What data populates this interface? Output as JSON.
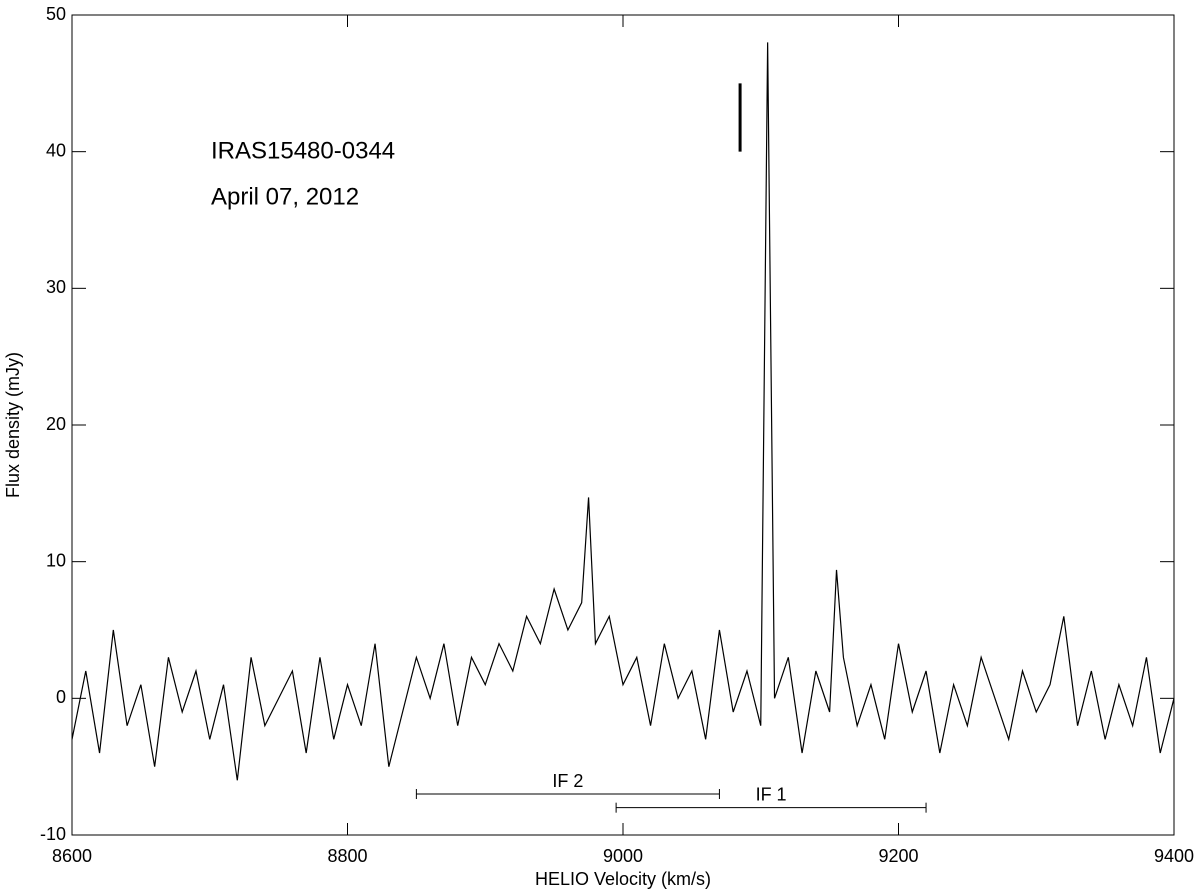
{
  "chart_data": {
    "type": "line",
    "xlabel": "HELIO Velocity (km/s)",
    "ylabel": "Flux density (mJy)",
    "annotations": [
      "IRAS15480-0344",
      "April 07, 2012"
    ],
    "color": "#000000",
    "x": [
      8600,
      8610,
      8620,
      8630,
      8640,
      8650,
      8660,
      8670,
      8680,
      8690,
      8700,
      8710,
      8720,
      8730,
      8740,
      8750,
      8760,
      8770,
      8780,
      8790,
      8800,
      8810,
      8820,
      8830,
      8840,
      8850,
      8860,
      8870,
      8880,
      8890,
      8900,
      8910,
      8920,
      8930,
      8940,
      8950,
      8960,
      8970,
      8975,
      8980,
      8990,
      9000,
      9010,
      9020,
      9030,
      9040,
      9050,
      9060,
      9070,
      9080,
      9090,
      9100,
      9105,
      9110,
      9120,
      9130,
      9140,
      9150,
      9155,
      9160,
      9170,
      9180,
      9190,
      9200,
      9210,
      9220,
      9230,
      9240,
      9250,
      9260,
      9270,
      9280,
      9290,
      9300,
      9310,
      9320,
      9330,
      9340,
      9350,
      9360,
      9370,
      9380,
      9390,
      9400
    ],
    "values": [
      -3,
      2,
      -4,
      5,
      -2,
      1,
      -5,
      3,
      -1,
      2,
      -3,
      1,
      -6,
      3,
      -2,
      0,
      2,
      -4,
      3,
      -3,
      1,
      -2,
      4,
      -5,
      -1,
      3,
      0,
      4,
      -2,
      3,
      1,
      4,
      2,
      6,
      4,
      8,
      5,
      7,
      14.7,
      4,
      6,
      1,
      3,
      -2,
      4,
      0,
      2,
      -3,
      5,
      -1,
      2,
      -2,
      48,
      0,
      3,
      -4,
      2,
      -1,
      9.4,
      3,
      -2,
      1,
      -3,
      4,
      -1,
      2,
      -4,
      1,
      -2,
      3,
      0,
      -3,
      2,
      -1,
      1,
      6,
      -2,
      2,
      -3,
      1,
      -2,
      3,
      -4,
      0
    ],
    "ranges": [
      {
        "label": "IF 2",
        "x": [
          8850,
          9070
        ],
        "y": -7
      },
      {
        "label": "IF 1",
        "x": [
          8995,
          9220
        ],
        "y": -8
      }
    ],
    "marker": {
      "x": 9085,
      "y": [
        40,
        45
      ]
    },
    "xlim": [
      8600,
      9400
    ],
    "xticks": [
      8600,
      8800,
      9000,
      9200,
      9400
    ],
    "ylim": [
      -10,
      50
    ],
    "yticks": [
      -10,
      0,
      10,
      20,
      30,
      40,
      50
    ]
  }
}
